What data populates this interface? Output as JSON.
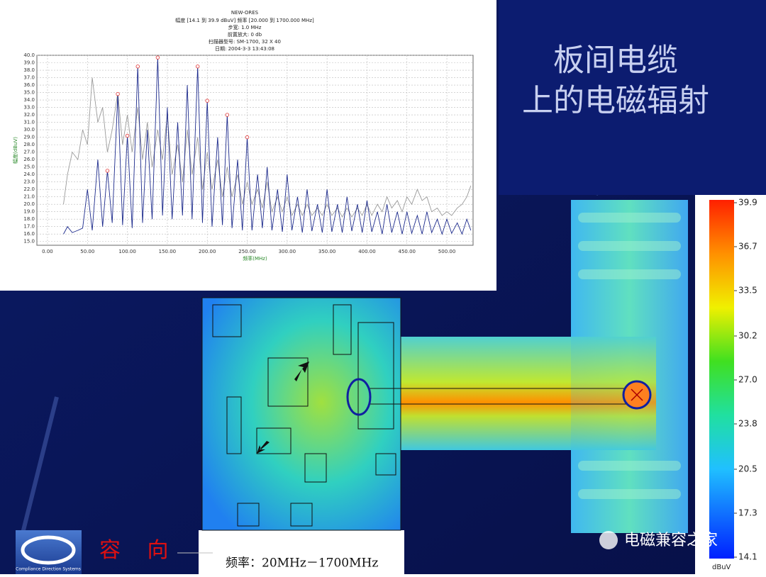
{
  "chart_data": {
    "type": "line",
    "title": "NEW-ORES",
    "header_lines": [
      "幅度 [14.1 到 39.9 dBuV] 频率 [20.000 到 1700.000 MHz]",
      "步宽: 1.0 MHz",
      "前置放大: 0 db",
      "扫描器型号: SM-1700, 32 X 40",
      "日期: 2004-3-3 13:43:08"
    ],
    "y_label": "幅度(dBuV)",
    "x_label": "频率(MHz)",
    "xlim": [
      -13.3,
      532.8
    ],
    "ylim": [
      14.5,
      40.0
    ],
    "xticks": [
      {
        "value": 0,
        "label": "0.00"
      },
      {
        "value": 50,
        "label": "50.00"
      },
      {
        "value": 100,
        "label": "100.00"
      },
      {
        "value": 150,
        "label": "150.00"
      },
      {
        "value": 200,
        "label": "200.00"
      },
      {
        "value": 250,
        "label": "250.00"
      },
      {
        "value": 300,
        "label": "300.00"
      },
      {
        "value": 350,
        "label": "350.00"
      },
      {
        "value": 400,
        "label": "400.00"
      },
      {
        "value": 450,
        "label": "450.00"
      },
      {
        "value": 500,
        "label": "500.00"
      }
    ],
    "yticks": [
      {
        "value": 15,
        "label": "15.0"
      },
      {
        "value": 16,
        "label": "16.0"
      },
      {
        "value": 17,
        "label": "17.0"
      },
      {
        "value": 18,
        "label": "18.0"
      },
      {
        "value": 19,
        "label": "19.0"
      },
      {
        "value": 20,
        "label": "20.0"
      },
      {
        "value": 21,
        "label": "21.0"
      },
      {
        "value": 22,
        "label": "22.0"
      },
      {
        "value": 23,
        "label": "23.0"
      },
      {
        "value": 24,
        "label": "24.0"
      },
      {
        "value": 25,
        "label": "25.0"
      },
      {
        "value": 26,
        "label": "26.0"
      },
      {
        "value": 27,
        "label": "27.0"
      },
      {
        "value": 28,
        "label": "28.0"
      },
      {
        "value": 29,
        "label": "29.0"
      },
      {
        "value": 30,
        "label": "30.0"
      },
      {
        "value": 31,
        "label": "31.0"
      },
      {
        "value": 32,
        "label": "32.0"
      },
      {
        "value": 33,
        "label": "33.0"
      },
      {
        "value": 34,
        "label": "34.0"
      },
      {
        "value": 35,
        "label": "35.0"
      },
      {
        "value": 36,
        "label": "36.0"
      },
      {
        "value": 37,
        "label": "37.0"
      },
      {
        "value": 38,
        "label": "38.0"
      },
      {
        "value": 39,
        "label": "39.0"
      },
      {
        "value": 40,
        "label": "40.0"
      }
    ],
    "grid": true,
    "x": [
      20,
      25,
      31,
      38,
      44,
      50,
      56,
      63,
      69,
      75,
      81,
      88,
      94,
      100,
      106,
      113,
      119,
      125,
      131,
      138,
      144,
      150,
      156,
      163,
      169,
      175,
      181,
      188,
      194,
      200,
      206,
      213,
      219,
      225,
      231,
      238,
      244,
      250,
      256,
      263,
      269,
      275,
      281,
      288,
      294,
      300,
      306,
      313,
      319,
      325,
      331,
      338,
      344,
      350,
      356,
      363,
      369,
      375,
      381,
      388,
      394,
      400,
      406,
      413,
      419,
      425,
      431,
      438,
      444,
      450,
      456,
      463,
      469,
      475,
      481,
      488,
      494,
      500,
      506,
      513,
      519,
      525,
      530
    ],
    "series": [
      {
        "color": "#9a9a9a",
        "values": [
          20,
          24,
          27,
          26,
          30,
          28,
          37,
          31,
          33,
          27,
          30,
          35,
          28,
          32,
          27,
          33,
          26,
          31,
          25,
          30,
          26,
          32,
          24,
          28,
          23,
          30,
          24,
          29,
          22,
          27,
          22,
          26,
          21,
          25,
          21,
          24,
          20,
          23,
          20,
          22,
          19.5,
          23,
          19,
          21,
          19,
          21,
          18.5,
          20,
          18.5,
          20,
          18.5,
          19.5,
          18.5,
          20,
          18.5,
          19.5,
          18.3,
          19.5,
          18.3,
          19.5,
          18.5,
          20,
          18.5,
          20,
          19,
          21,
          19.5,
          20.5,
          19,
          21,
          20,
          22,
          20.5,
          21,
          19,
          19.5,
          18.5,
          19,
          18.5,
          19.5,
          20,
          21,
          22.5
        ]
      },
      {
        "color": "#1c2a8c",
        "values": [
          16.0,
          17.0,
          16.2,
          16.5,
          16.8,
          22.0,
          16.5,
          26.0,
          17.0,
          24.5,
          17.5,
          34.8,
          17.2,
          29.2,
          16.8,
          38.5,
          17.5,
          30.0,
          18.0,
          39.7,
          18.5,
          33.0,
          18.0,
          31.0,
          18.5,
          36.0,
          18.0,
          38.5,
          17.5,
          33.9,
          17.0,
          29.0,
          17.2,
          32.0,
          16.8,
          26.0,
          16.5,
          29.0,
          16.5,
          24.0,
          16.8,
          25.0,
          16.5,
          22.0,
          16.3,
          24.0,
          16.5,
          21.0,
          16.2,
          22.0,
          16.4,
          20.0,
          16.2,
          22.0,
          16.3,
          20.0,
          16.2,
          21.0,
          16.4,
          20.0,
          16.2,
          20.5,
          16.3,
          19.0,
          16.0,
          20.0,
          16.2,
          19.0,
          16.0,
          19.0,
          16.1,
          18.5,
          16.0,
          19.0,
          16.2,
          18.0,
          16.0,
          18.0,
          16.1,
          17.5,
          16.0,
          18.0,
          16.5
        ]
      },
      {
        "type": "scatter",
        "color": "#e03030",
        "x": [
          75,
          88,
          100,
          113,
          138,
          188,
          200,
          225,
          250
        ],
        "values": [
          24.5,
          34.8,
          29.2,
          38.5,
          39.7,
          38.5,
          33.9,
          32.0,
          29.0
        ]
      }
    ]
  },
  "slide": {
    "title_lines": [
      "板间电缆",
      "上的电磁辐射"
    ],
    "colorbar": {
      "ticks": [
        39.9,
        36.7,
        33.5,
        30.2,
        {
          "value": 27,
          "label": "27.0"
        },
        23.8,
        20.5,
        17.3,
        14.1
      ],
      "unit": "dBuV"
    },
    "footer": {
      "company": "容 向",
      "logo_caption": "Compliance Direction Systems",
      "frequency": "频率：20MHz－1700MHz",
      "watermark": "电磁兼容之家"
    }
  }
}
